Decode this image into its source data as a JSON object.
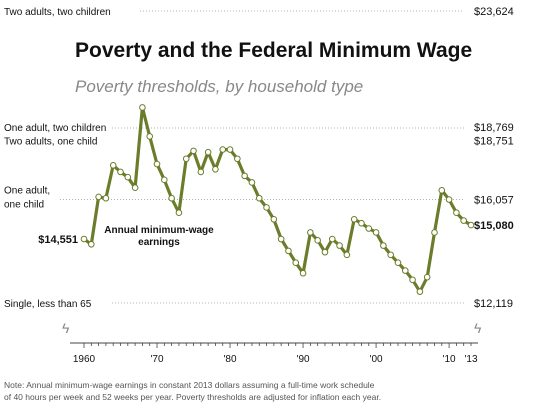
{
  "chart_data": {
    "type": "line",
    "title": "Poverty and the Federal Minimum Wage",
    "subtitle": "Poverty thresholds, by household type",
    "series": [
      {
        "name": "Annual minimum-wage earnings",
        "x": [
          1960,
          1961,
          1962,
          1963,
          1964,
          1965,
          1966,
          1967,
          1968,
          1969,
          1970,
          1971,
          1972,
          1973,
          1974,
          1975,
          1976,
          1977,
          1978,
          1979,
          1980,
          1981,
          1982,
          1983,
          1984,
          1985,
          1986,
          1987,
          1988,
          1989,
          1990,
          1991,
          1992,
          1993,
          1994,
          1995,
          1996,
          1997,
          1998,
          1999,
          2000,
          2001,
          2002,
          2003,
          2004,
          2005,
          2006,
          2007,
          2008,
          2009,
          2010,
          2011,
          2012,
          2013
        ],
        "values": [
          14551,
          14350,
          16150,
          16100,
          17350,
          17100,
          16900,
          16500,
          19550,
          18450,
          17400,
          16800,
          16100,
          15550,
          17600,
          17900,
          17100,
          17850,
          17200,
          17950,
          17950,
          17600,
          16950,
          16700,
          16100,
          15750,
          15300,
          14550,
          14100,
          13650,
          13250,
          14800,
          14500,
          14050,
          14550,
          14300,
          13950,
          15300,
          15150,
          14950,
          14800,
          14300,
          13950,
          13650,
          13350,
          13000,
          12550,
          13100,
          14800,
          16400,
          16050,
          15550,
          15250,
          15080
        ]
      }
    ],
    "thresholds": [
      {
        "label": "Two adults, two children",
        "value": "$23,624",
        "y": 23624
      },
      {
        "label": "One adult, two children",
        "value": "$18,769",
        "y": 18769
      },
      {
        "label": "Two adults, one child",
        "value": "$18,751",
        "y": 18751
      },
      {
        "label": "One adult,",
        "label2": "one child",
        "value": "$16,057",
        "y": 16057
      },
      {
        "label": "Single, less than 65",
        "value": "$12,119",
        "y": 12119
      }
    ],
    "start_label": "$14,551",
    "end_label": "$15,080",
    "series_annotation": [
      "Annual minimum-wage",
      "earnings"
    ],
    "x_ticks": [
      {
        "year": 1960,
        "label": "1960"
      },
      {
        "year": 1970,
        "label": "'70"
      },
      {
        "year": 1980,
        "label": "'80"
      },
      {
        "year": 1990,
        "label": "'90"
      },
      {
        "year": 2000,
        "label": "'00"
      },
      {
        "year": 2010,
        "label": "'10"
      },
      {
        "year": 2013,
        "label": "'13"
      }
    ],
    "note": [
      "Note: Annual minimum-wage earnings in constant 2013 dollars assuming a full-time work schedule",
      "of 40 hours per week and 52 weeks per year. Poverty thresholds are adjusted for inflation each year."
    ],
    "axis_break_glyph": "ϟ",
    "colors": {
      "line": "#6b7d2a",
      "marker_fill": "#ffffff",
      "text": "#111111",
      "muted": "#888888",
      "gridline": "#999999",
      "axis": "#444444"
    }
  }
}
